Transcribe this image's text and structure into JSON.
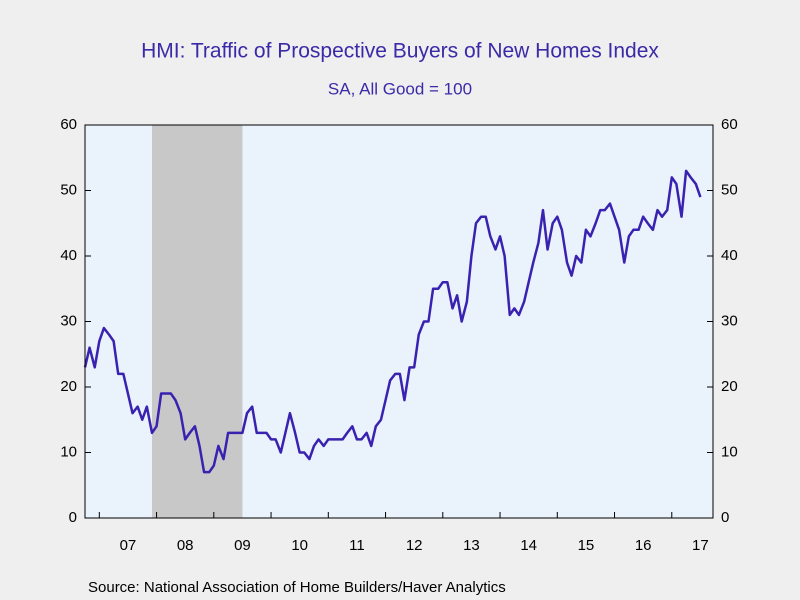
{
  "chart_data": {
    "type": "line",
    "title": "HMI: Traffic of Prospective Buyers of New Homes Index",
    "subtitle": "SA, All Good = 100",
    "source": "Source:  National Association of Home Builders/Haver Analytics",
    "x": [
      2006.75,
      2006.83,
      2006.92,
      2007,
      2007.08,
      2007.17,
      2007.25,
      2007.33,
      2007.42,
      2007.5,
      2007.58,
      2007.67,
      2007.75,
      2007.83,
      2007.92,
      2008,
      2008.08,
      2008.17,
      2008.25,
      2008.33,
      2008.42,
      2008.5,
      2008.58,
      2008.67,
      2008.75,
      2008.83,
      2008.92,
      2009,
      2009.08,
      2009.17,
      2009.25,
      2009.33,
      2009.42,
      2009.5,
      2009.58,
      2009.67,
      2009.75,
      2009.83,
      2009.92,
      2010,
      2010.08,
      2010.17,
      2010.25,
      2010.33,
      2010.42,
      2010.5,
      2010.58,
      2010.67,
      2010.75,
      2010.83,
      2010.92,
      2011,
      2011.08,
      2011.17,
      2011.25,
      2011.33,
      2011.42,
      2011.5,
      2011.58,
      2011.67,
      2011.75,
      2011.83,
      2011.92,
      2012,
      2012.08,
      2012.17,
      2012.25,
      2012.33,
      2012.42,
      2012.5,
      2012.58,
      2012.67,
      2012.75,
      2012.83,
      2012.92,
      2013,
      2013.08,
      2013.17,
      2013.25,
      2013.33,
      2013.42,
      2013.5,
      2013.58,
      2013.67,
      2013.75,
      2013.83,
      2013.92,
      2014,
      2014.08,
      2014.17,
      2014.25,
      2014.33,
      2014.42,
      2014.5,
      2014.58,
      2014.67,
      2014.75,
      2014.83,
      2014.92,
      2015,
      2015.08,
      2015.17,
      2015.25,
      2015.33,
      2015.42,
      2015.5,
      2015.58,
      2015.67,
      2015.75,
      2015.83,
      2015.92,
      2016,
      2016.08,
      2016.17,
      2016.25,
      2016.33,
      2016.42,
      2016.5,
      2016.58,
      2016.67,
      2016.75,
      2016.83,
      2016.92,
      2017,
      2017.08,
      2017.17,
      2017.25,
      2017.33,
      2017.42,
      2017.5
    ],
    "series": [
      {
        "color": "#3a22b0",
        "values": [
          23,
          26,
          23,
          27,
          29,
          28,
          27,
          22,
          22,
          19,
          16,
          17,
          15,
          17,
          13,
          14,
          19,
          19,
          19,
          18,
          16,
          12,
          13,
          14,
          11,
          7,
          7,
          8,
          11,
          9,
          13,
          13,
          13,
          13,
          16,
          17,
          13,
          13,
          13,
          12,
          12,
          10,
          13,
          16,
          13,
          10,
          10,
          9,
          11,
          12,
          11,
          12,
          12,
          12,
          12,
          13,
          14,
          12,
          12,
          13,
          11,
          14,
          15,
          18,
          21,
          22,
          22,
          18,
          23,
          23,
          28,
          30,
          30,
          35,
          35,
          36,
          36,
          32,
          34,
          30,
          33,
          40,
          45,
          46,
          46,
          43,
          41,
          43,
          40,
          31,
          32,
          31,
          33,
          36,
          39,
          42,
          47,
          41,
          45,
          46,
          44,
          39,
          37,
          40,
          39,
          44,
          43,
          45,
          47,
          47,
          48,
          46,
          44,
          39,
          43,
          44,
          44,
          46,
          45,
          44,
          47,
          46,
          47,
          52,
          51,
          46,
          53,
          52,
          51,
          49
        ]
      }
    ],
    "shade_x": [
      2007.92,
      2009.5
    ],
    "xlim": [
      2006.75,
      2017.72
    ],
    "xticks": [
      {
        "value": 2007,
        "label": "07"
      },
      {
        "value": 2008,
        "label": "08"
      },
      {
        "value": 2009,
        "label": "09"
      },
      {
        "value": 2010,
        "label": "10"
      },
      {
        "value": 2011,
        "label": "11"
      },
      {
        "value": 2012,
        "label": "12"
      },
      {
        "value": 2013,
        "label": "13"
      },
      {
        "value": 2014,
        "label": "14"
      },
      {
        "value": 2015,
        "label": "15"
      },
      {
        "value": 2016,
        "label": "16"
      },
      {
        "value": 2017,
        "label": "17"
      }
    ],
    "ylim": [
      0,
      60
    ],
    "yticks": [
      0,
      10,
      20,
      30,
      40,
      50,
      60
    ]
  }
}
